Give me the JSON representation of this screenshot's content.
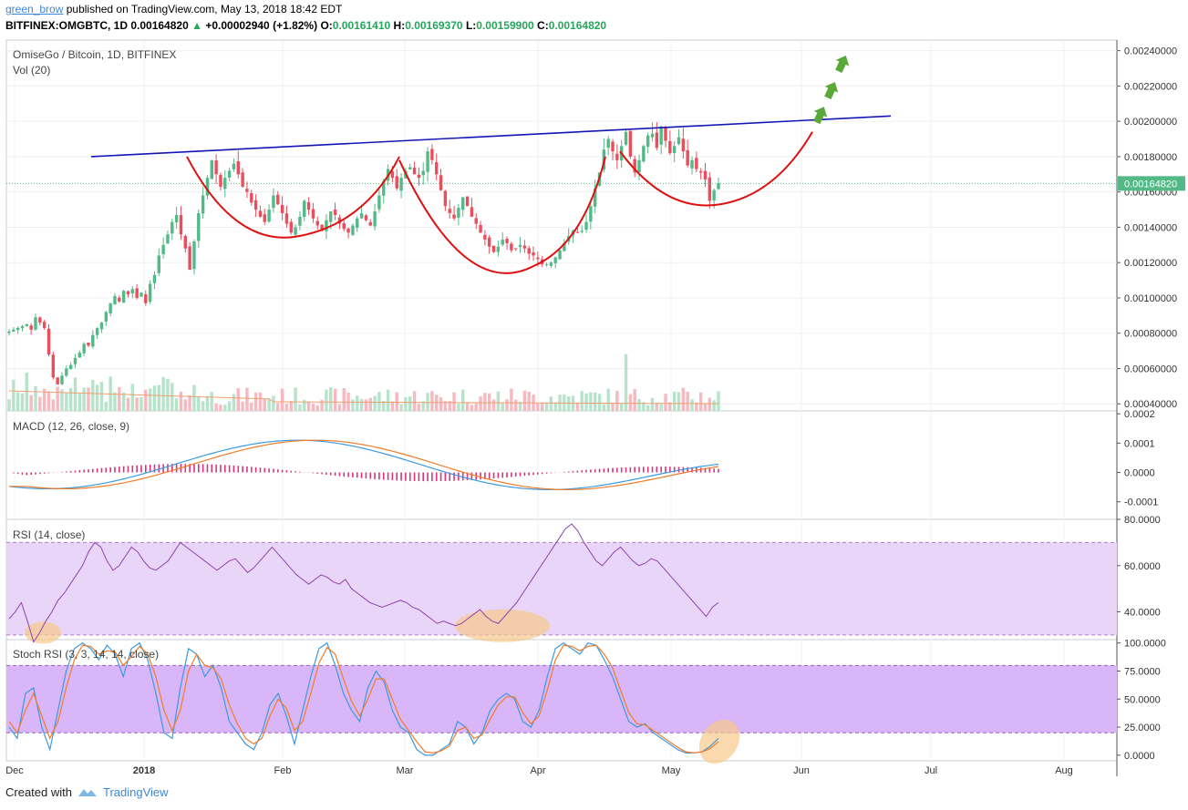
{
  "header": {
    "author": "green_brow",
    "published_text": "published on TradingView.com, May 13, 2018 18:42 EDT",
    "symbol": "BITFINEX:OMGBTC, 1D",
    "last": "0.00164820",
    "change": "+0.00002940 (+1.82%)",
    "open_label": "O:",
    "open": "0.00161410",
    "high_label": "H:",
    "high": "0.00169370",
    "low_label": "L:",
    "low": "0.00159900",
    "close_label": "C:",
    "close": "0.00164820"
  },
  "panes": {
    "main_title": "OmiseGo / Bitcoin, 1D, BITFINEX",
    "vol_title": "Vol (20)",
    "macd_title": "MACD (12, 26, close, 9)",
    "rsi_title": "RSI (14, close)",
    "stoch_title": "Stoch RSI (3, 3, 14, 14, close)"
  },
  "last_price_label": "0.00164820",
  "footer": {
    "created_with": "Created with",
    "brand": "TradingView"
  },
  "colors": {
    "up": "#53b987",
    "down": "#eb4d5c",
    "trend": "#1515b5",
    "pattern": "#e01010",
    "arrow": "#5aa83a",
    "macd": "#3c9ae0",
    "signal": "#f07c2a",
    "hist": "#d4357b",
    "rsi": "#8e44ad",
    "band": "#e9d5f7",
    "stoch_band": "#d9b6f7"
  },
  "chart_data": [
    {
      "type": "candlestick",
      "title": "OmiseGo / Bitcoin, 1D, BITFINEX",
      "x_ticks": [
        "Dec",
        "2018",
        "Feb",
        "Mar",
        "Apr",
        "May",
        "Jun",
        "Jul",
        "Aug"
      ],
      "y_ticks": [
        "0.00240000",
        "0.00220000",
        "0.00200000",
        "0.00180000",
        "0.00160000",
        "0.00140000",
        "0.00120000",
        "0.00100000",
        "0.00080000",
        "0.00060000",
        "0.00040000"
      ],
      "ylim": [
        0.00036,
        0.00246
      ],
      "close_series": [
        0.00081,
        0.00082,
        0.00083,
        0.00084,
        0.00085,
        0.00082,
        0.00089,
        0.00086,
        0.00083,
        0.00068,
        0.00055,
        0.00051,
        0.00056,
        0.0006,
        0.00062,
        0.00066,
        0.00069,
        0.00074,
        0.00073,
        0.00079,
        0.00083,
        0.00086,
        0.00092,
        0.00097,
        0.00101,
        0.00098,
        0.00104,
        0.00102,
        0.00105,
        0.001,
        0.00103,
        0.00097,
        0.00108,
        0.00113,
        0.00124,
        0.0013,
        0.00136,
        0.00143,
        0.00147,
        0.00136,
        0.00128,
        0.00116,
        0.00132,
        0.00148,
        0.00158,
        0.00168,
        0.00178,
        0.0017,
        0.00163,
        0.00168,
        0.00172,
        0.00176,
        0.0017,
        0.00163,
        0.0016,
        0.00154,
        0.0015,
        0.00146,
        0.00143,
        0.0015,
        0.00158,
        0.00153,
        0.00148,
        0.00142,
        0.00137,
        0.0014,
        0.00146,
        0.00155,
        0.0015,
        0.00145,
        0.00141,
        0.00138,
        0.00144,
        0.00149,
        0.00147,
        0.00142,
        0.00139,
        0.00137,
        0.00141,
        0.00145,
        0.00148,
        0.00144,
        0.00141,
        0.00149,
        0.00158,
        0.00166,
        0.00173,
        0.00168,
        0.00162,
        0.00168,
        0.00172,
        0.00174,
        0.0017,
        0.00168,
        0.00172,
        0.00183,
        0.00178,
        0.0017,
        0.00161,
        0.00152,
        0.00148,
        0.00145,
        0.00151,
        0.00157,
        0.00152,
        0.00146,
        0.00142,
        0.00137,
        0.00133,
        0.00129,
        0.00126,
        0.00129,
        0.00133,
        0.00131,
        0.00127,
        0.00128,
        0.0013,
        0.00128,
        0.00125,
        0.00124,
        0.00122,
        0.00119,
        0.00119,
        0.0012,
        0.00123,
        0.00127,
        0.00131,
        0.00135,
        0.00138,
        0.00137,
        0.00138,
        0.00143,
        0.00152,
        0.00162,
        0.00171,
        0.00184,
        0.0019,
        0.00183,
        0.00178,
        0.00186,
        0.00194,
        0.0018,
        0.00171,
        0.00178,
        0.00186,
        0.00192,
        0.00193,
        0.00185,
        0.00197,
        0.00189,
        0.00182,
        0.00186,
        0.00191,
        0.00183,
        0.00175,
        0.00178,
        0.00173,
        0.00171,
        0.00167,
        0.00155,
        0.00161,
        0.00165
      ],
      "annotations": [
        "trend line",
        "cup and handle pattern",
        "breakout arrows"
      ]
    },
    {
      "type": "line",
      "title": "MACD (12, 26, close, 9)",
      "y_ticks": [
        "0.0002",
        "0.0001",
        "0.0000",
        "-0.0001"
      ],
      "ylim": [
        -0.00016,
        0.00021
      ]
    },
    {
      "type": "line",
      "title": "RSI (14, close)",
      "y_ticks": [
        "80.0000",
        "60.0000",
        "40.0000"
      ],
      "ylim": [
        28.0,
        80.0
      ],
      "band": [
        30,
        70
      ],
      "series": [
        {
          "values": [
            37,
            40,
            44,
            36,
            27,
            31,
            36,
            40,
            45,
            48,
            52,
            56,
            60,
            66,
            70,
            68,
            62,
            58,
            60,
            64,
            68,
            66,
            62,
            59,
            58,
            60,
            62,
            66,
            70,
            68,
            66,
            64,
            62,
            60,
            58,
            60,
            62,
            63,
            60,
            57,
            59,
            62,
            65,
            68,
            65,
            62,
            59,
            56,
            54,
            52,
            54,
            56,
            55,
            53,
            52,
            54,
            50,
            48,
            46,
            44,
            43,
            42,
            43,
            44,
            45,
            44,
            42,
            41,
            39,
            37,
            35,
            36,
            35,
            34,
            35,
            37,
            39,
            41,
            38,
            36,
            35,
            38,
            41,
            44,
            48,
            52,
            56,
            60,
            64,
            68,
            72,
            76,
            78,
            75,
            70,
            66,
            62,
            60,
            63,
            66,
            68,
            65,
            62,
            60,
            61,
            63,
            62,
            59,
            56,
            53,
            50,
            47,
            44,
            41,
            38,
            42,
            44
          ]
        }
      ]
    },
    {
      "type": "line",
      "title": "Stoch RSI (3, 3, 14, 14, close)",
      "y_ticks": [
        "100.0000",
        "75.0000",
        "50.0000",
        "25.0000",
        "0.0000"
      ],
      "ylim": [
        -5,
        103
      ],
      "band": [
        20,
        80
      ],
      "series": [
        {
          "values": [
            25,
            15,
            55,
            60,
            25,
            5,
            40,
            75,
            95,
            100,
            95,
            85,
            98,
            90,
            70,
            95,
            100,
            85,
            55,
            20,
            15,
            60,
            95,
            90,
            70,
            80,
            60,
            30,
            20,
            10,
            5,
            20,
            45,
            55,
            35,
            10,
            40,
            70,
            95,
            100,
            80,
            55,
            40,
            30,
            60,
            75,
            65,
            40,
            25,
            20,
            5,
            0,
            0,
            5,
            10,
            30,
            25,
            10,
            20,
            40,
            50,
            55,
            50,
            30,
            25,
            40,
            70,
            95,
            100,
            95,
            90,
            100,
            98,
            85,
            70,
            50,
            30,
            25,
            28,
            20,
            15,
            10,
            5,
            2,
            2,
            3,
            8,
            15
          ]
        },
        {
          "values": [
            30,
            20,
            40,
            55,
            35,
            15,
            30,
            60,
            85,
            98,
            97,
            90,
            93,
            92,
            80,
            88,
            97,
            90,
            70,
            40,
            22,
            40,
            75,
            90,
            80,
            78,
            68,
            45,
            28,
            15,
            10,
            15,
            35,
            50,
            42,
            22,
            30,
            55,
            82,
            96,
            90,
            68,
            48,
            35,
            50,
            68,
            68,
            50,
            32,
            22,
            12,
            3,
            2,
            4,
            8,
            22,
            25,
            15,
            18,
            32,
            45,
            52,
            52,
            38,
            28,
            35,
            58,
            85,
            98,
            97,
            93,
            97,
            98,
            90,
            78,
            58,
            38,
            28,
            27,
            22,
            17,
            12,
            7,
            3,
            2,
            3,
            6,
            12
          ]
        }
      ]
    }
  ]
}
